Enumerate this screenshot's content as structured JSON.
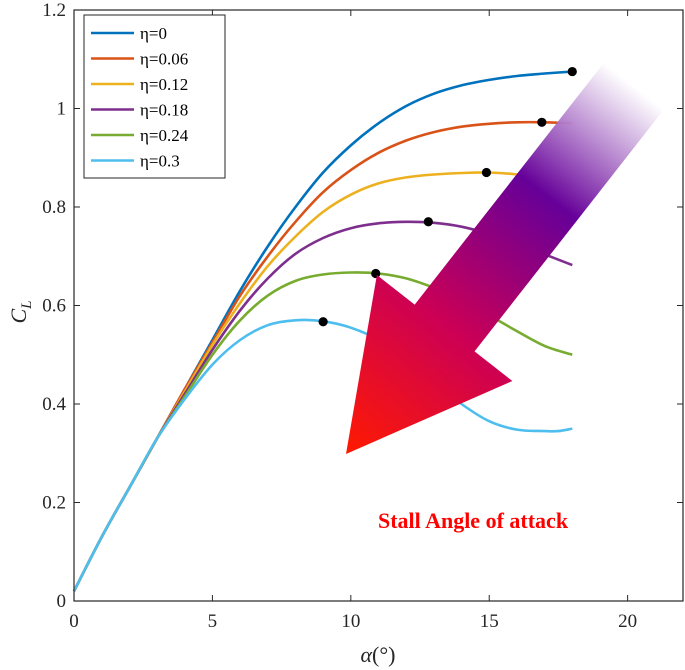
{
  "chart_data": {
    "type": "line",
    "title": "",
    "xlabel": {
      "symbol": "α",
      "unit": "(°)"
    },
    "ylabel": {
      "symbol": "C",
      "subscript": "L"
    },
    "xlim": [
      0,
      22
    ],
    "ylim": [
      0,
      1.2
    ],
    "x_ticks": [
      "0",
      "5",
      "10",
      "15",
      "20"
    ],
    "y_ticks": [
      "0",
      "0.2",
      "0.4",
      "0.6",
      "0.8",
      "1",
      "1.2"
    ],
    "grid": false,
    "legend_position": "top-left",
    "series": [
      {
        "name": "η=0",
        "color": "#0072bd",
        "x": [
          0,
          1,
          2,
          3,
          4,
          5,
          6,
          7,
          8,
          9,
          10,
          11,
          12,
          13,
          14,
          15,
          16,
          17,
          18
        ],
        "y": [
          0.02,
          0.13,
          0.23,
          0.33,
          0.43,
          0.53,
          0.63,
          0.72,
          0.8,
          0.87,
          0.925,
          0.97,
          1.005,
          1.03,
          1.047,
          1.058,
          1.066,
          1.071,
          1.075
        ],
        "stall_point": {
          "x": 18.0,
          "y": 1.075
        }
      },
      {
        "name": "η=0.06",
        "color": "#d95319",
        "x": [
          0,
          1,
          2,
          3,
          4,
          5,
          6,
          7,
          8,
          9,
          10,
          11,
          12,
          13,
          14,
          15,
          16,
          17,
          18
        ],
        "y": [
          0.02,
          0.13,
          0.23,
          0.33,
          0.43,
          0.525,
          0.62,
          0.7,
          0.77,
          0.83,
          0.875,
          0.91,
          0.935,
          0.952,
          0.963,
          0.969,
          0.972,
          0.972,
          0.97
        ],
        "stall_point": {
          "x": 16.9,
          "y": 0.972
        }
      },
      {
        "name": "η=0.12",
        "color": "#edb120",
        "x": [
          0,
          1,
          2,
          3,
          4,
          5,
          6,
          7,
          8,
          9,
          10,
          11,
          12,
          13,
          14,
          15,
          16,
          17,
          18
        ],
        "y": [
          0.02,
          0.13,
          0.23,
          0.33,
          0.425,
          0.52,
          0.605,
          0.68,
          0.74,
          0.79,
          0.825,
          0.848,
          0.86,
          0.866,
          0.869,
          0.87,
          0.866,
          0.857,
          0.843
        ],
        "stall_point": {
          "x": 14.9,
          "y": 0.87
        }
      },
      {
        "name": "η=0.18",
        "color": "#7e2f8e",
        "x": [
          0,
          1,
          2,
          3,
          4,
          5,
          6,
          7,
          8,
          9,
          10,
          11,
          12,
          13,
          14,
          15,
          16,
          17,
          18
        ],
        "y": [
          0.02,
          0.13,
          0.23,
          0.33,
          0.42,
          0.51,
          0.59,
          0.655,
          0.705,
          0.737,
          0.757,
          0.767,
          0.77,
          0.768,
          0.76,
          0.745,
          0.726,
          0.704,
          0.682
        ],
        "stall_point": {
          "x": 12.8,
          "y": 0.77
        }
      },
      {
        "name": "η=0.24",
        "color": "#77ac30",
        "x": [
          0,
          1,
          2,
          3,
          4,
          5,
          6,
          7,
          8,
          9,
          10,
          11,
          12,
          13,
          14,
          15,
          16,
          17,
          18
        ],
        "y": [
          0.02,
          0.13,
          0.23,
          0.33,
          0.415,
          0.5,
          0.57,
          0.62,
          0.65,
          0.663,
          0.667,
          0.665,
          0.655,
          0.636,
          0.611,
          0.58,
          0.548,
          0.518,
          0.5
        ],
        "stall_point": {
          "x": 10.9,
          "y": 0.665
        }
      },
      {
        "name": "η=0.3",
        "color": "#4dbeee",
        "x": [
          0,
          1,
          2,
          3,
          4,
          5,
          6,
          7,
          8,
          9,
          10,
          11,
          12,
          13,
          14,
          15,
          16,
          17,
          17.5,
          18
        ],
        "y": [
          0.02,
          0.13,
          0.23,
          0.33,
          0.41,
          0.48,
          0.53,
          0.56,
          0.57,
          0.568,
          0.555,
          0.53,
          0.49,
          0.445,
          0.4,
          0.365,
          0.348,
          0.345,
          0.345,
          0.35
        ],
        "stall_point": {
          "x": 9.0,
          "y": 0.567
        }
      }
    ],
    "annotation": {
      "text": "Stall Angle of attack",
      "color": "#ff0000"
    }
  }
}
